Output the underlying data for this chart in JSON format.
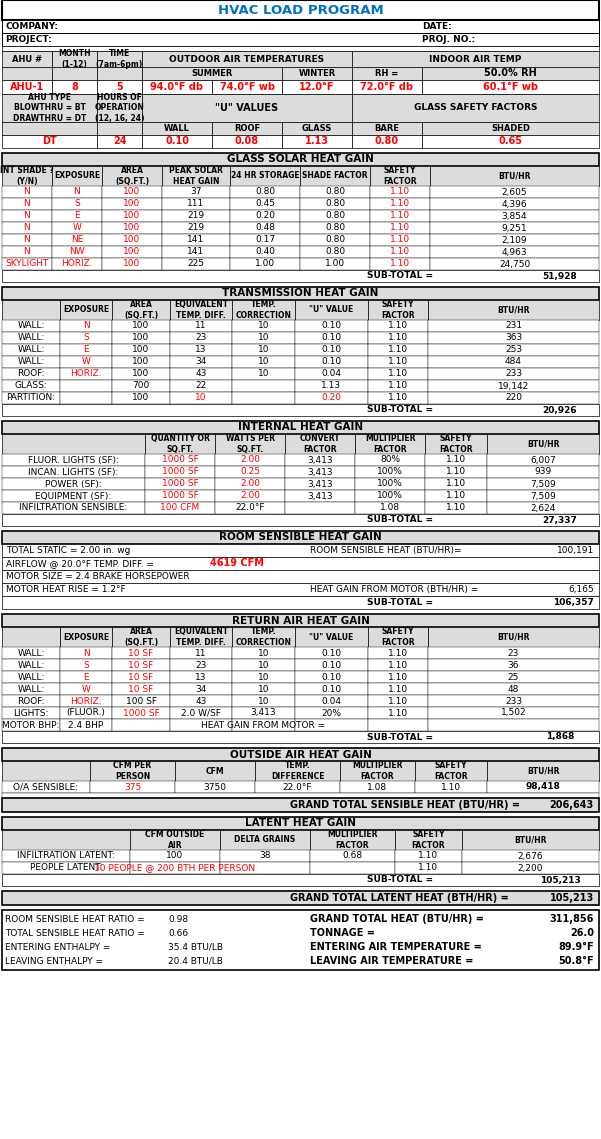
{
  "title": "HVAC LOAD PROGRAM",
  "red": "#FF0000",
  "black": "#000000",
  "blue": "#0070C0",
  "lgray": "#DCDCDC",
  "glass_solar_rows": [
    [
      "N",
      "N",
      "100",
      "37",
      "0.80",
      "0.80",
      "1.10",
      "2,605"
    ],
    [
      "N",
      "S",
      "100",
      "111",
      "0.45",
      "0.80",
      "1.10",
      "4,396"
    ],
    [
      "N",
      "E",
      "100",
      "219",
      "0.20",
      "0.80",
      "1.10",
      "3,854"
    ],
    [
      "N",
      "W",
      "100",
      "219",
      "0.48",
      "0.80",
      "1.10",
      "9,251"
    ],
    [
      "N",
      "NE",
      "100",
      "141",
      "0.17",
      "0.80",
      "1.10",
      "2,109"
    ],
    [
      "N",
      "NW",
      "100",
      "141",
      "0.40",
      "0.80",
      "1.10",
      "4,963"
    ],
    [
      "SKYLIGHT",
      "HORIZ.",
      "100",
      "225",
      "1.00",
      "1.00",
      "1.10",
      "24,750"
    ]
  ],
  "transmission_rows": [
    [
      "WALL:",
      "N",
      "100",
      "11",
      "10",
      "0.10",
      "1.10",
      "231"
    ],
    [
      "WALL:",
      "S",
      "100",
      "23",
      "10",
      "0.10",
      "1.10",
      "363"
    ],
    [
      "WALL:",
      "E",
      "100",
      "13",
      "10",
      "0.10",
      "1.10",
      "253"
    ],
    [
      "WALL:",
      "W",
      "100",
      "34",
      "10",
      "0.10",
      "1.10",
      "484"
    ],
    [
      "ROOF:",
      "HORIZ.",
      "100",
      "43",
      "10",
      "0.04",
      "1.10",
      "233"
    ],
    [
      "GLASS:",
      "",
      "700",
      "22",
      "",
      "1.13",
      "1.10",
      "19,142"
    ],
    [
      "PARTITION:",
      "",
      "100",
      "10",
      "",
      "0.20",
      "1.10",
      "220"
    ]
  ],
  "internal_rows": [
    [
      "FLUOR. LIGHTS (SF):",
      "1000 SF",
      "2.00",
      "3,413",
      "80%",
      "1.10",
      "6,007"
    ],
    [
      "INCAN. LIGHTS (SF):",
      "1000 SF",
      "0.25",
      "3,413",
      "100%",
      "1.10",
      "939"
    ],
    [
      "POWER (SF):",
      "1000 SF",
      "2.00",
      "3,413",
      "100%",
      "1.10",
      "7,509"
    ],
    [
      "EQUIPMENT (SF):",
      "1000 SF",
      "2.00",
      "3,413",
      "100%",
      "1.10",
      "7,509"
    ],
    [
      "INFILTRATION SENSIBLE:",
      "100 CFM",
      "22.0°F",
      "",
      "1.08",
      "1.10",
      "2,624"
    ]
  ],
  "return_air_rows": [
    [
      "WALL:",
      "N",
      "10 SF",
      "11",
      "10",
      "0.10",
      "1.10",
      "23"
    ],
    [
      "WALL:",
      "S",
      "10 SF",
      "23",
      "10",
      "0.10",
      "1.10",
      "36"
    ],
    [
      "WALL:",
      "E",
      "10 SF",
      "13",
      "10",
      "0.10",
      "1.10",
      "25"
    ],
    [
      "WALL:",
      "W",
      "10 SF",
      "34",
      "10",
      "0.10",
      "1.10",
      "48"
    ],
    [
      "ROOF:",
      "HORIZ.",
      "100 SF",
      "43",
      "10",
      "0.04",
      "1.10",
      "233"
    ],
    [
      "LIGHTS:",
      "(FLUOR.)",
      "1000 SF",
      "2.0 W/SF",
      "3,413",
      "20%",
      "1.10",
      "1,502"
    ],
    [
      "MOTOR BHP:",
      "2.4 BHP",
      "",
      "",
      "HEAT GAIN FROM MOTOR =",
      "",
      "",
      ""
    ]
  ]
}
